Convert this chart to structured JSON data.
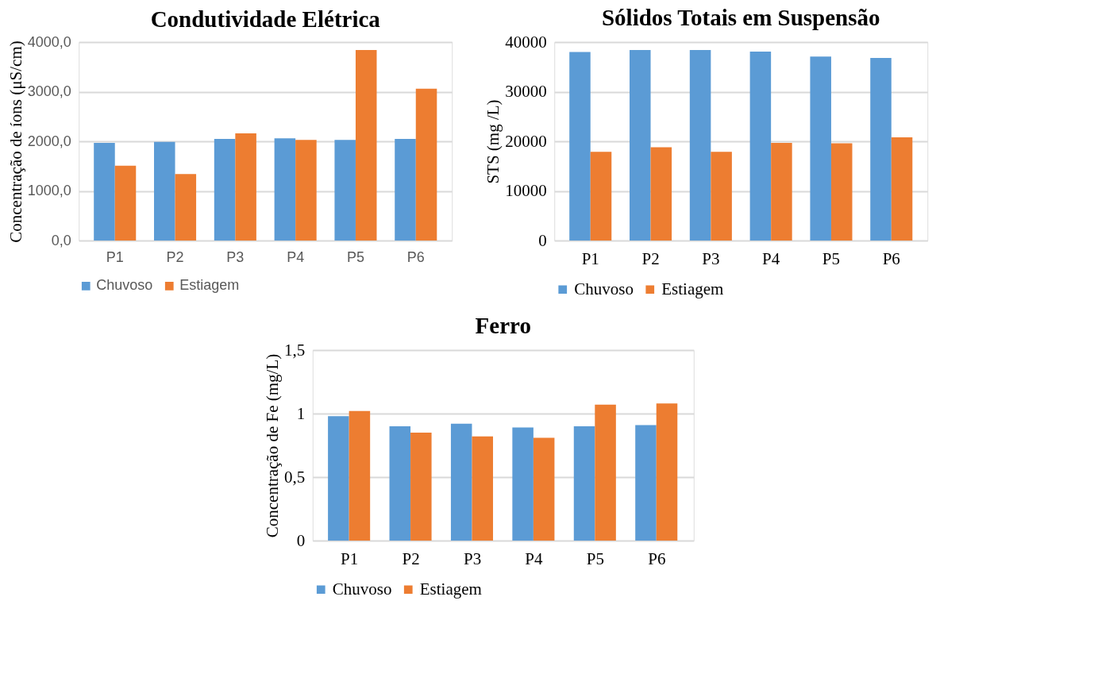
{
  "chart_data": [
    {
      "type": "bar",
      "title": "Condutividade Elétrica",
      "ylabel": "Concentração de íons (μS/cm)",
      "categories": [
        "P1",
        "P2",
        "P3",
        "P4",
        "P5",
        "P6"
      ],
      "series": [
        {
          "name": "Chuvoso",
          "color": "#5b9bd5",
          "values": [
            1970,
            1990,
            2050,
            2060,
            2030,
            2050
          ]
        },
        {
          "name": "Estiagem",
          "color": "#ed7d31",
          "values": [
            1510,
            1340,
            2160,
            2030,
            3840,
            3060
          ]
        }
      ],
      "ylim": [
        0,
        4000
      ],
      "yticks": [
        {
          "value": 0,
          "label": "0,0"
        },
        {
          "value": 1000,
          "label": "1000,0"
        },
        {
          "value": 2000,
          "label": "2000,0"
        },
        {
          "value": 3000,
          "label": "3000,0"
        },
        {
          "value": 4000,
          "label": "4000,0"
        }
      ],
      "grid": "y",
      "legend": "bottom"
    },
    {
      "type": "bar",
      "title": "Sólidos Totais em Suspensão",
      "ylabel": "STS (mg /L)",
      "categories": [
        "P1",
        "P2",
        "P3",
        "P4",
        "P5",
        "P6"
      ],
      "series": [
        {
          "name": "Chuvoso",
          "color": "#5b9bd5",
          "values": [
            38000,
            38400,
            38400,
            38100,
            37100,
            36800
          ]
        },
        {
          "name": "Estiagem",
          "color": "#ed7d31",
          "values": [
            17900,
            18800,
            17900,
            19700,
            19600,
            20800
          ]
        }
      ],
      "ylim": [
        0,
        40000
      ],
      "yticks": [
        0,
        10000,
        20000,
        30000,
        40000
      ],
      "grid": "y",
      "legend": "bottom"
    },
    {
      "type": "bar",
      "title": "Ferro",
      "ylabel": "Concentração de Fe (mg/L)",
      "categories": [
        "P1",
        "P2",
        "P3",
        "P4",
        "P5",
        "P6"
      ],
      "series": [
        {
          "name": "Chuvoso",
          "color": "#5b9bd5",
          "values": [
            0.98,
            0.9,
            0.92,
            0.89,
            0.9,
            0.91
          ]
        },
        {
          "name": "Estiagem",
          "color": "#ed7d31",
          "values": [
            1.02,
            0.85,
            0.82,
            0.81,
            1.07,
            1.08
          ]
        }
      ],
      "ylim": [
        0,
        1.5
      ],
      "yticks": [
        0,
        {
          "value": 0.5,
          "label": "0,5"
        },
        1,
        {
          "value": 1.5,
          "label": "1,5"
        }
      ],
      "grid": "y",
      "legend": "bottom"
    }
  ]
}
